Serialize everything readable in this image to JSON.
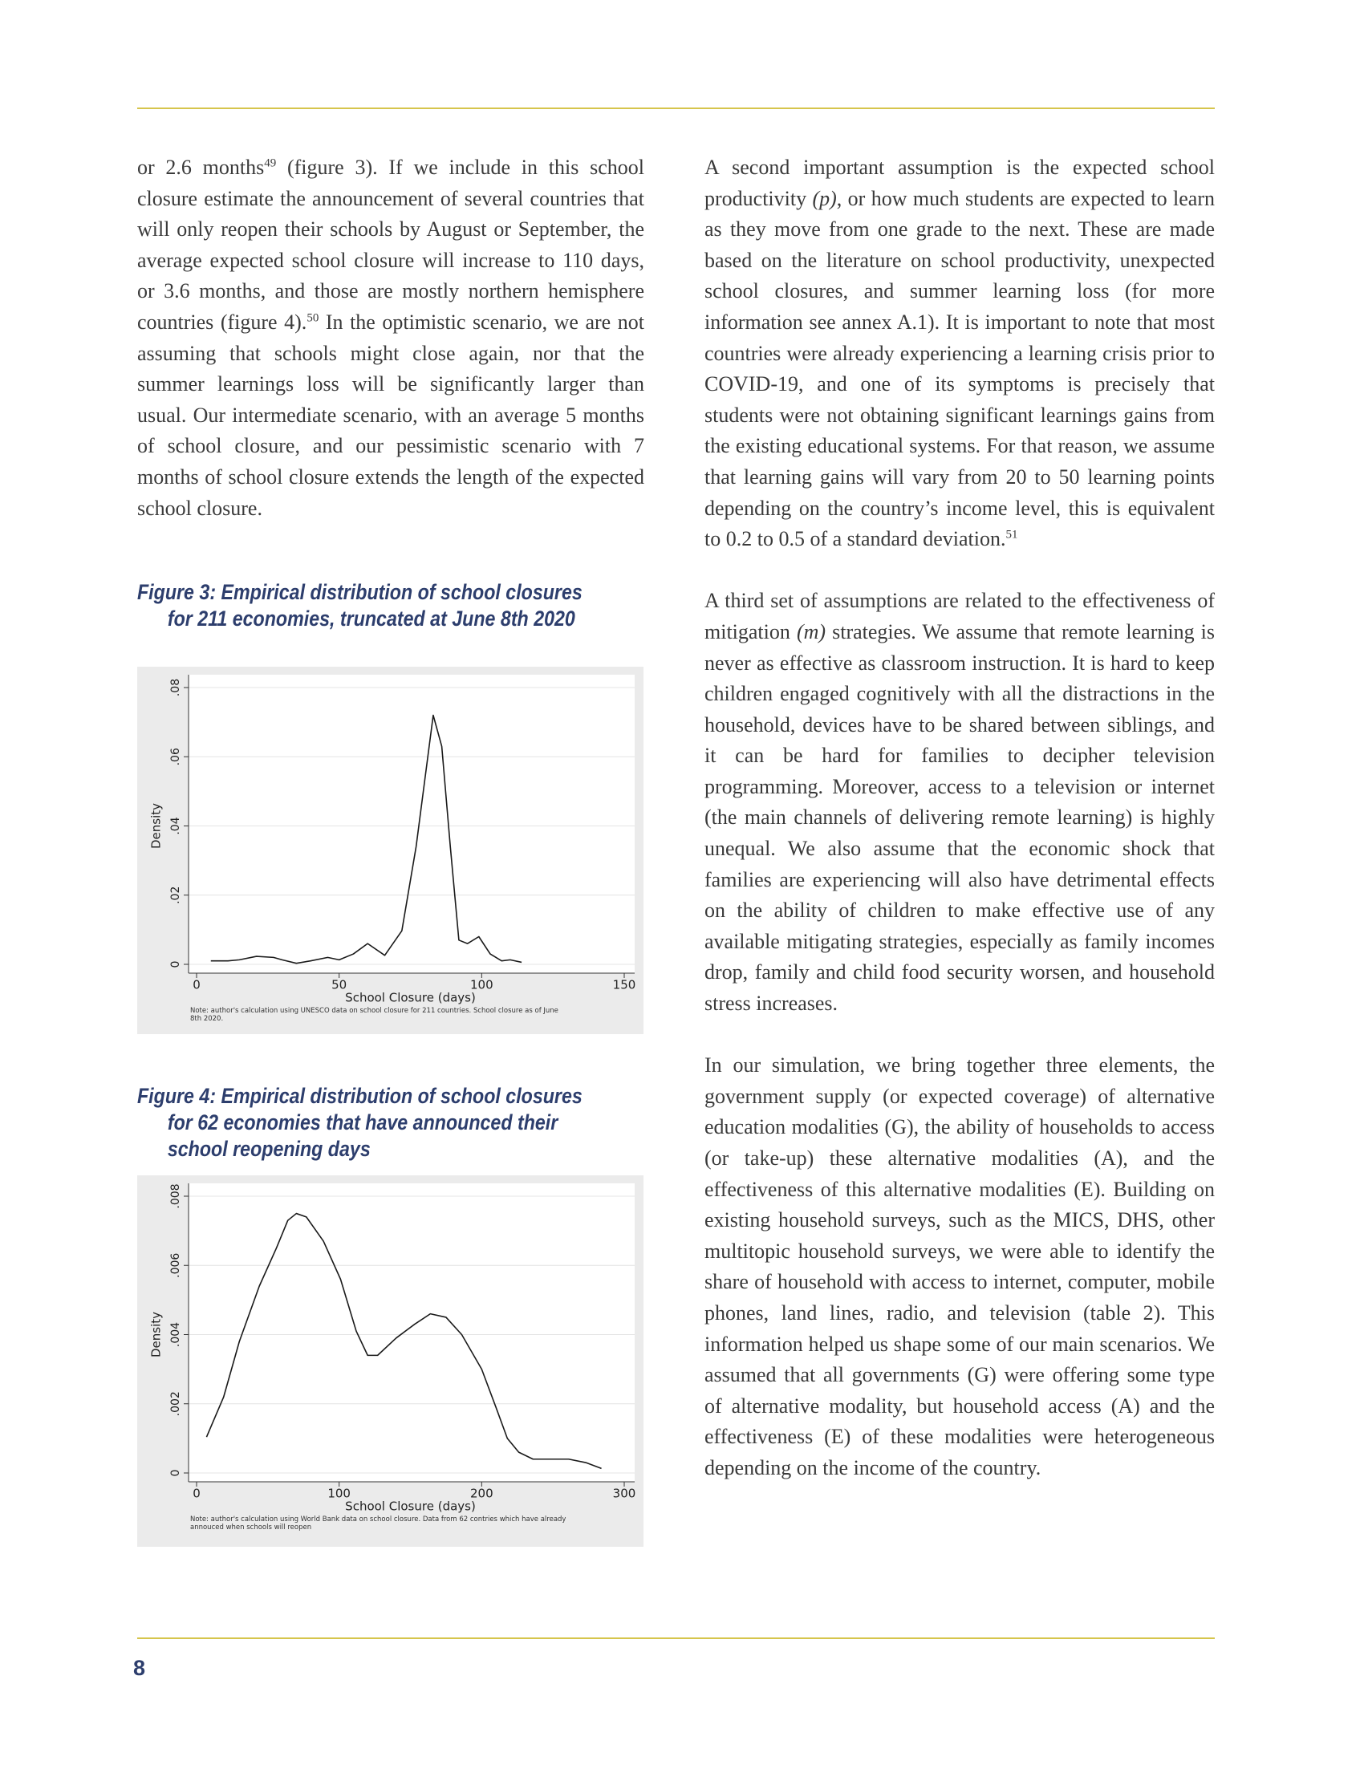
{
  "body": {
    "left": [
      [
        {
          "text": "or 2.6 months"
        },
        {
          "sup": "49"
        },
        {
          "text": " (figure 3). If we include in this school closure estimate the announcement of several countries that will only reopen their schools by August or September, the average expected school closure will increase to 110 days, or 3.6 months, and those are mostly northern hemisphere countries (figure 4)."
        },
        {
          "sup": "50"
        },
        {
          "text": " In the optimistic scenario, we are not assuming that schools might close again, nor that the summer learnings loss will be significantly larger than usual. Our intermediate scenario, with an average 5 months of school closure, and our pessimistic scenario with 7 months of school closure extends the length of the expected school closure."
        }
      ]
    ],
    "right": [
      [
        {
          "text": "A second important assumption is the expected school productivity "
        },
        {
          "em": "(p)"
        },
        {
          "text": ", or how much students are expected to learn as they move from one grade to the next. These are made based on the literature on school productivity, unexpected school closures, and summer learning loss (for more information see annex A.1). It is important to note that most countries were already experiencing a learning crisis prior to COVID-19, and one of its symptoms is precisely that students were not obtaining significant learnings gains from the existing educational systems. For that reason, we assume that learning gains will vary from 20 to 50 learning points depending on the country’s income level, this is equivalent to 0.2 to 0.5 of a standard deviation."
        },
        {
          "sup": "51"
        }
      ],
      [
        {
          "text": "A third set of assumptions are related to the effectiveness of mitigation "
        },
        {
          "em": "(m)"
        },
        {
          "text": " strategies. We assume that remote learning is never as effective as classroom instruction. It is hard to keep children engaged cognitively with all the distractions in the household, devices have to be shared between siblings, and it can be hard for families to decipher television programming. Moreover, access to a television or internet (the main channels of delivering remote learning) is highly unequal. We also assume that the economic shock that families are experiencing will also have detrimental effects on the ability of children to make effective use of any available mitigating strategies, especially as family incomes drop, family and child food security worsen, and household stress increases."
        }
      ],
      [
        {
          "text": "In our simulation, we bring together three elements, the government supply (or expected coverage) of alternative education modalities (G), the ability of households to access (or take-up) these alternative modalities (A), and the effectiveness of this alternative modalities (E). Building on existing household surveys, such as the MICS, DHS, other multitopic household surveys, we were able to identify the share of household with access to internet, computer, mobile phones, land lines, radio, and television (table 2). This information helped us shape some of our main scenarios. We assumed that all governments (G) were offering some type of alternative modality, but household access (A) and the effectiveness (E) of these modalities were heterogeneous depending on the income of the country."
        }
      ]
    ]
  },
  "figures": [
    {
      "caption": [
        "Figure 3: Empirical distribution of school closures",
        "for 211 economies, truncated at June 8th 2020"
      ],
      "chart_data": {
        "type": "line",
        "x_label": "School Closure (days)",
        "y_label": "Density",
        "note": "Note: author's calculation using UNESCO data on school closure for 211 countries. School closure as of June 8th 2020.",
        "x": [
          5,
          11,
          15,
          21,
          27,
          30,
          35,
          40,
          46,
          50,
          55,
          60,
          66,
          72,
          77,
          80,
          83,
          86,
          89,
          92,
          95,
          99,
          103,
          107,
          110,
          114
        ],
        "values": [
          0.001,
          0.001,
          0.0013,
          0.0023,
          0.002,
          0.0013,
          0.0003,
          0.001,
          0.002,
          0.0013,
          0.003,
          0.006,
          0.0026,
          0.0097,
          0.034,
          0.053,
          0.072,
          0.063,
          0.034,
          0.007,
          0.006,
          0.008,
          0.003,
          0.001,
          0.0013,
          0.0006
        ],
        "color": "#1a1a1a",
        "xlim": [
          0,
          150
        ],
        "xticks": [
          0,
          50,
          100,
          150
        ],
        "ylim": [
          0,
          0.08
        ],
        "yticks": [
          0,
          {
            "value": 0.02,
            "label": ".02"
          },
          {
            "value": 0.04,
            "label": ".04"
          },
          {
            "value": 0.06,
            "label": ".06"
          },
          {
            "value": 0.08,
            "label": ".08"
          }
        ],
        "grid": true
      }
    },
    {
      "caption": [
        "Figure 4: Empirical distribution of school closures",
        "for 62 economies that have announced their",
        "school reopening days"
      ],
      "chart_data": {
        "type": "line",
        "x_label": "School Closure (days)",
        "y_label": "Density",
        "note": "Note: author's calculation using World Bank data on school closure. Data from 62 contries which have already annouced when schools will reopen",
        "x": [
          7,
          19,
          30,
          44,
          56,
          64,
          70,
          77,
          89,
          101,
          112,
          120,
          127,
          140,
          153,
          164,
          175,
          186,
          200,
          210,
          218,
          226,
          236,
          249,
          261,
          273,
          284
        ],
        "values": [
          0.00104,
          0.0022,
          0.0038,
          0.0054,
          0.0065,
          0.0073,
          0.0075,
          0.0074,
          0.0067,
          0.0056,
          0.0041,
          0.0034,
          0.0034,
          0.0039,
          0.0043,
          0.0046,
          0.0045,
          0.004,
          0.003,
          0.0019,
          0.001,
          0.0006,
          0.0004,
          0.0004,
          0.0004,
          0.0003,
          0.00013
        ],
        "color": "#1a1a1a",
        "xlim": [
          0,
          300
        ],
        "xticks": [
          0,
          100,
          200,
          300
        ],
        "ylim": [
          0,
          0.008
        ],
        "yticks": [
          0,
          {
            "value": 0.002,
            "label": ".002"
          },
          {
            "value": 0.004,
            "label": ".004"
          },
          {
            "value": 0.006,
            "label": ".006"
          },
          {
            "value": 0.008,
            "label": ".008"
          }
        ],
        "grid": true
      }
    }
  ],
  "page_number": "8"
}
